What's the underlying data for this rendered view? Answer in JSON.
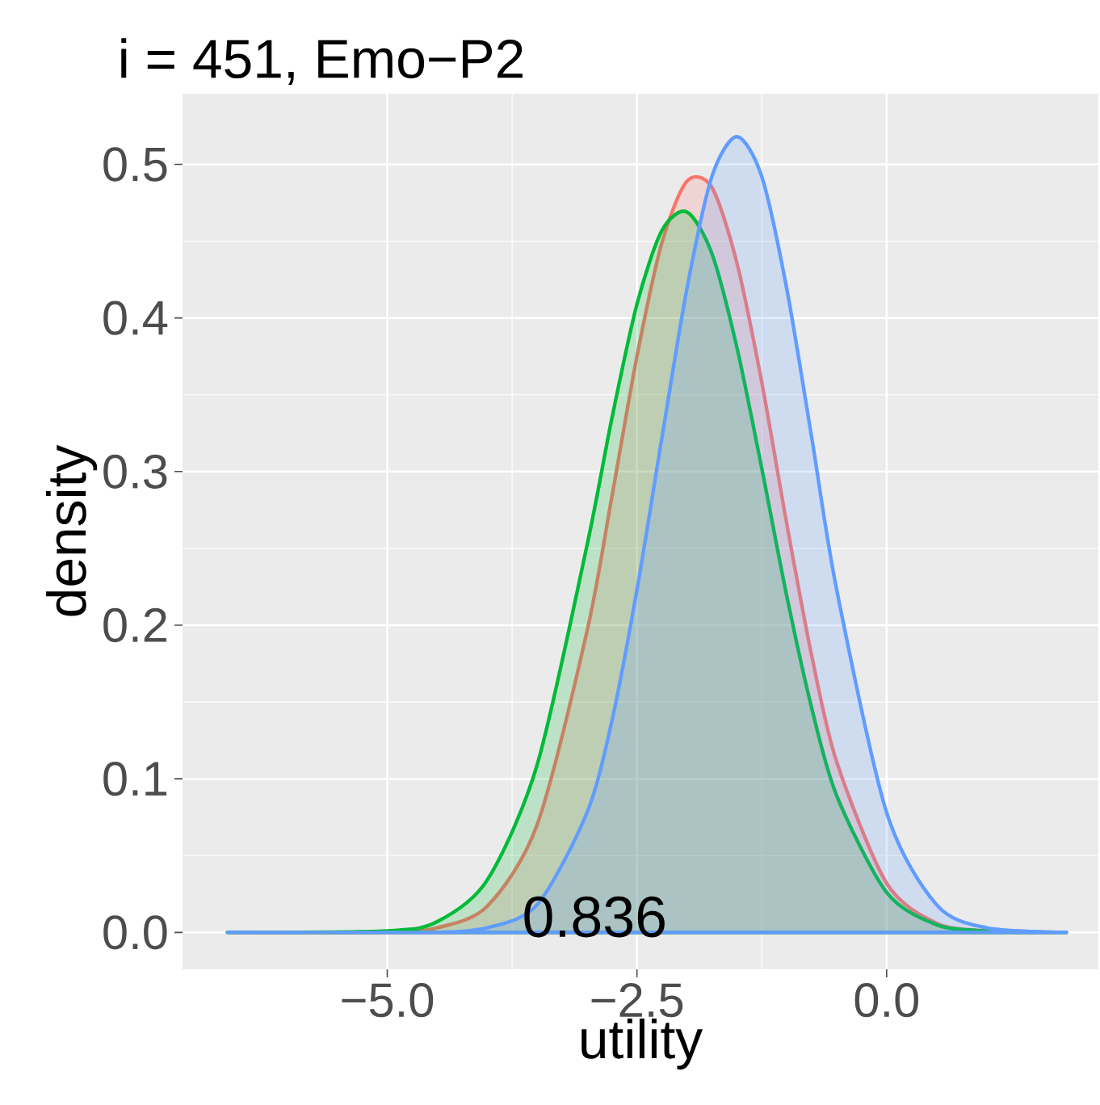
{
  "chart_data": {
    "type": "area",
    "title": "i = 451, Emo−P2",
    "xlabel": "utility",
    "ylabel": "density",
    "x": [
      -6.6,
      -5,
      -4.5,
      -4,
      -3.5,
      -3,
      -2.75,
      -2.5,
      -2.25,
      -2,
      -1.75,
      -1.5,
      -1.25,
      -1,
      -0.75,
      -0.5,
      0,
      0.5,
      1,
      1.8
    ],
    "series": [
      {
        "color": "#f8766d",
        "values": [
          0,
          0,
          0.003,
          0.017,
          0.07,
          0.196,
          0.284,
          0.375,
          0.449,
          0.489,
          0.485,
          0.436,
          0.358,
          0.266,
          0.18,
          0.111,
          0.032,
          0.006,
          0.001,
          0
        ]
      },
      {
        "color": "#00ba38",
        "values": [
          0,
          0.001,
          0.007,
          0.034,
          0.109,
          0.252,
          0.335,
          0.409,
          0.457,
          0.469,
          0.442,
          0.381,
          0.302,
          0.219,
          0.146,
          0.089,
          0.026,
          0.005,
          0.001,
          0
        ]
      },
      {
        "color": "#619cff",
        "values": [
          0,
          0,
          0,
          0.003,
          0.018,
          0.078,
          0.138,
          0.223,
          0.322,
          0.419,
          0.492,
          0.518,
          0.492,
          0.419,
          0.322,
          0.223,
          0.078,
          0.018,
          0.003,
          0
        ]
      }
    ],
    "xlim": [
      -7.05,
      2.12
    ],
    "ylim": [
      -0.024,
      0.546
    ],
    "xticks": [
      {
        "value": -5,
        "label": "−5.0"
      },
      {
        "value": -2.5,
        "label": "−2.5"
      },
      {
        "value": 0,
        "label": "0.0"
      }
    ],
    "yticks": [
      {
        "value": 0,
        "label": "0.0"
      },
      {
        "value": 0.1,
        "label": "0.1"
      },
      {
        "value": 0.2,
        "label": "0.2"
      },
      {
        "value": 0.3,
        "label": "0.3"
      },
      {
        "value": 0.4,
        "label": "0.4"
      },
      {
        "value": 0.5,
        "label": "0.5"
      }
    ],
    "grid": true,
    "annotations": [
      "0.836"
    ]
  }
}
